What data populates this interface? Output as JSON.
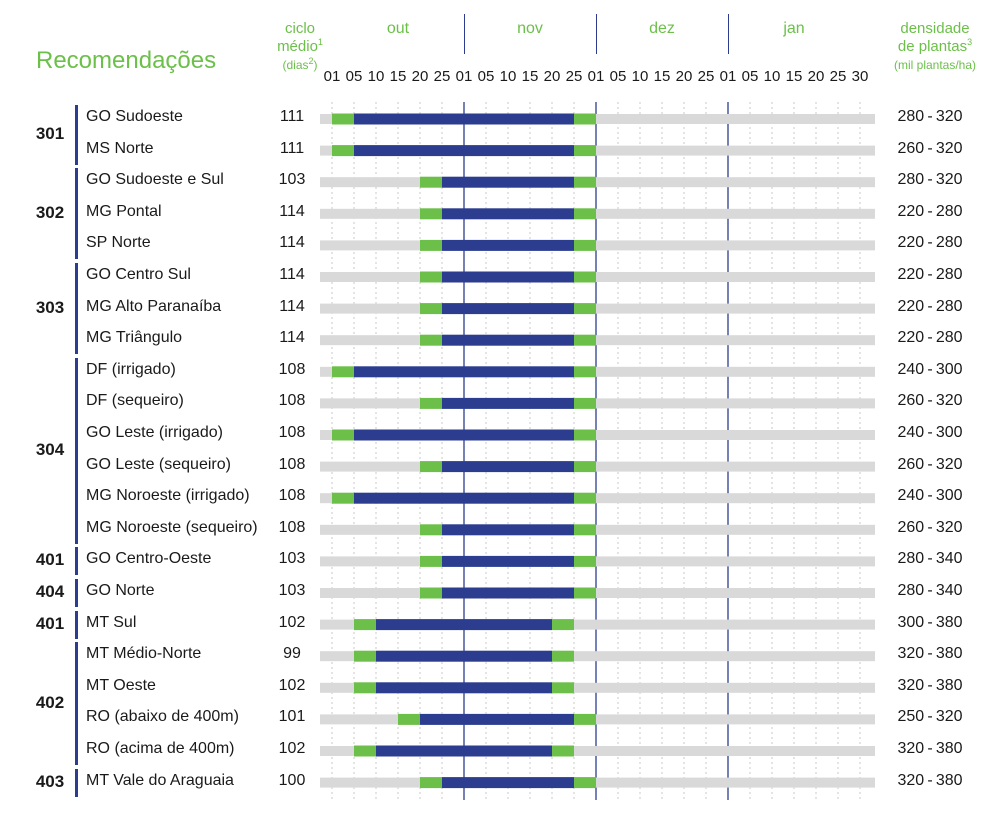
{
  "title": "Recomendações",
  "header": {
    "ciclo_line1": "ciclo",
    "ciclo_line2": "médio",
    "ciclo_sup": "1",
    "ciclo_unit": "(dias",
    "ciclo_unit_sup": "2",
    "ciclo_unit_close": ")",
    "dens_line1": "densidade",
    "dens_line2": "de plantas",
    "dens_sup": "3",
    "dens_unit": "(mil plantas/ha)"
  },
  "months": [
    "out",
    "nov",
    "dez",
    "jan"
  ],
  "ticks": [
    "01",
    "05",
    "10",
    "15",
    "20",
    "25",
    "01",
    "05",
    "10",
    "15",
    "20",
    "25",
    "01",
    "05",
    "10",
    "15",
    "20",
    "25",
    "01",
    "05",
    "10",
    "15",
    "20",
    "25",
    "30"
  ],
  "groups": [
    {
      "label": "301",
      "rows": [
        0,
        1
      ]
    },
    {
      "label": "302",
      "rows": [
        2,
        4
      ]
    },
    {
      "label": "303",
      "rows": [
        5,
        7
      ]
    },
    {
      "label": "304",
      "rows": [
        8,
        13
      ]
    },
    {
      "label": "401",
      "rows": [
        14,
        14
      ]
    },
    {
      "label": "404",
      "rows": [
        15,
        15
      ]
    },
    {
      "label": "401",
      "rows": [
        16,
        16
      ]
    },
    {
      "label": "402",
      "rows": [
        17,
        20
      ]
    },
    {
      "label": "403",
      "rows": [
        21,
        21
      ]
    }
  ],
  "chart_data": {
    "type": "gantt",
    "timeline_start": "01 out",
    "timeline_end": "30 jan",
    "colors": {
      "base": "#d9d9d9",
      "margin": "#6cc04a",
      "main": "#2c3d8f",
      "accent": "#6cc04a"
    },
    "rows": [
      {
        "region": "GO Sudoeste",
        "ciclo": "111",
        "densidade": "280-320",
        "margin_start": "01 out",
        "main_start": "05 out",
        "main_end": "25 nov",
        "margin_end": "01 dez"
      },
      {
        "region": "MS Norte",
        "ciclo": "111",
        "densidade": "260-320",
        "margin_start": "01 out",
        "main_start": "05 out",
        "main_end": "25 nov",
        "margin_end": "01 dez"
      },
      {
        "region": "GO Sudoeste e Sul",
        "ciclo": "103",
        "densidade": "280-320",
        "margin_start": "20 out",
        "main_start": "25 out",
        "main_end": "25 nov",
        "margin_end": "01 dez"
      },
      {
        "region": "MG Pontal",
        "ciclo": "114",
        "densidade": "220-280",
        "margin_start": "20 out",
        "main_start": "25 out",
        "main_end": "25 nov",
        "margin_end": "01 dez"
      },
      {
        "region": "SP Norte",
        "ciclo": "114",
        "densidade": "220-280",
        "margin_start": "20 out",
        "main_start": "25 out",
        "main_end": "25 nov",
        "margin_end": "01 dez"
      },
      {
        "region": "GO Centro Sul",
        "ciclo": "114",
        "densidade": "220-280",
        "margin_start": "20 out",
        "main_start": "25 out",
        "main_end": "25 nov",
        "margin_end": "01 dez"
      },
      {
        "region": "MG Alto Paranaíba",
        "ciclo": "114",
        "densidade": "220-280",
        "margin_start": "20 out",
        "main_start": "25 out",
        "main_end": "25 nov",
        "margin_end": "01 dez"
      },
      {
        "region": "MG Triângulo",
        "ciclo": "114",
        "densidade": "220-280",
        "margin_start": "20 out",
        "main_start": "25 out",
        "main_end": "25 nov",
        "margin_end": "01 dez"
      },
      {
        "region": "DF (irrigado)",
        "ciclo": "108",
        "densidade": "240-300",
        "margin_start": "01 out",
        "main_start": "05 out",
        "main_end": "25 nov",
        "margin_end": "01 dez"
      },
      {
        "region": "DF (sequeiro)",
        "ciclo": "108",
        "densidade": "260-320",
        "margin_start": "20 out",
        "main_start": "25 out",
        "main_end": "25 nov",
        "margin_end": "01 dez"
      },
      {
        "region": "GO Leste (irrigado)",
        "ciclo": "108",
        "densidade": "240-300",
        "margin_start": "01 out",
        "main_start": "05 out",
        "main_end": "25 nov",
        "margin_end": "01 dez"
      },
      {
        "region": "GO Leste (sequeiro)",
        "ciclo": "108",
        "densidade": "260-320",
        "margin_start": "20 out",
        "main_start": "25 out",
        "main_end": "25 nov",
        "margin_end": "01 dez"
      },
      {
        "region": "MG Noroeste (irrigado)",
        "ciclo": "108",
        "densidade": "240-300",
        "margin_start": "01 out",
        "main_start": "05 out",
        "main_end": "25 nov",
        "margin_end": "01 dez"
      },
      {
        "region": "MG Noroeste (sequeiro)",
        "ciclo": "108",
        "densidade": "260-320",
        "margin_start": "20 out",
        "main_start": "25 out",
        "main_end": "25 nov",
        "margin_end": "01 dez"
      },
      {
        "region": "GO Centro-Oeste",
        "ciclo": "103",
        "densidade": "280-340",
        "margin_start": "20 out",
        "main_start": "25 out",
        "main_end": "25 nov",
        "margin_end": "01 dez"
      },
      {
        "region": "GO Norte",
        "ciclo": "103",
        "densidade": "280-340",
        "margin_start": "20 out",
        "main_start": "25 out",
        "main_end": "25 nov",
        "margin_end": "01 dez"
      },
      {
        "region": "MT Sul",
        "ciclo": "102",
        "densidade": "300-380",
        "margin_start": "05 out",
        "main_start": "10 out",
        "main_end": "20 nov",
        "margin_end": "25 nov"
      },
      {
        "region": "MT Médio-Norte",
        "ciclo": "99",
        "densidade": "320-380",
        "margin_start": "05 out",
        "main_start": "10 out",
        "main_end": "20 nov",
        "margin_end": "25 nov"
      },
      {
        "region": "MT Oeste",
        "ciclo": "102",
        "densidade": "320-380",
        "margin_start": "05 out",
        "main_start": "10 out",
        "main_end": "20 nov",
        "margin_end": "25 nov"
      },
      {
        "region": "RO (abaixo de 400m)",
        "ciclo": "101",
        "densidade": "250-320",
        "margin_start": "15 out",
        "main_start": "20 out",
        "main_end": "25 nov",
        "margin_end": "01 dez"
      },
      {
        "region": "RO (acima de 400m)",
        "ciclo": "102",
        "densidade": "320-380",
        "margin_start": "05 out",
        "main_start": "10 out",
        "main_end": "20 nov",
        "margin_end": "25 nov"
      },
      {
        "region": "MT Vale do Araguaia",
        "ciclo": "100",
        "densidade": "320-380",
        "margin_start": "20 out",
        "main_start": "25 out",
        "main_end": "25 nov",
        "margin_end": "01 dez"
      }
    ]
  }
}
